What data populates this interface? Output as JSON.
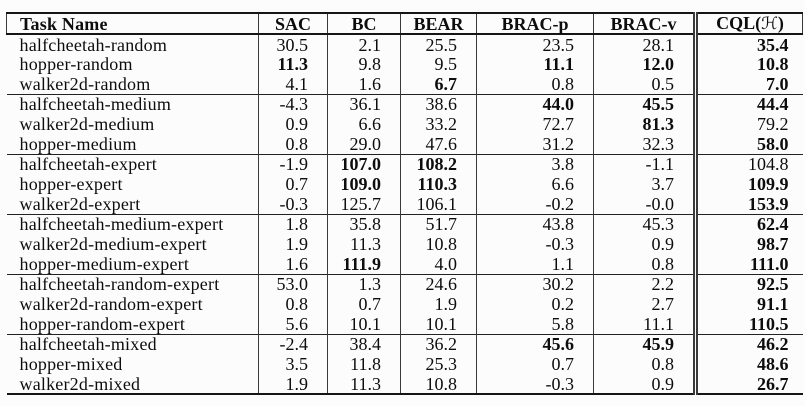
{
  "page": {
    "background_color": "#fcfcfc",
    "ink_color": "#0d0d0d"
  },
  "table": {
    "headers": [
      "Task Name",
      "SAC",
      "BC",
      "BEAR",
      "BRAC-p",
      "BRAC-v"
    ],
    "cql_header": {
      "prefix": "CQL(",
      "symbol": "ℋ",
      "suffix": ")"
    },
    "groups": [
      {
        "rows": [
          {
            "task": "halfcheetah-random",
            "values": [
              "30.5",
              "2.1",
              "25.5",
              "23.5",
              "28.1",
              "35.4"
            ],
            "bold": [
              5
            ]
          },
          {
            "task": "hopper-random",
            "values": [
              "11.3",
              "9.8",
              "9.5",
              "11.1",
              "12.0",
              "10.8"
            ],
            "bold": [
              0,
              3,
              4,
              5
            ]
          },
          {
            "task": "walker2d-random",
            "values": [
              "4.1",
              "1.6",
              "6.7",
              "0.8",
              "0.5",
              "7.0"
            ],
            "bold": [
              2,
              5
            ]
          }
        ]
      },
      {
        "rows": [
          {
            "task": "halfcheetah-medium",
            "values": [
              "-4.3",
              "36.1",
              "38.6",
              "44.0",
              "45.5",
              "44.4"
            ],
            "bold": [
              3,
              4,
              5
            ]
          },
          {
            "task": "walker2d-medium",
            "values": [
              "0.9",
              "6.6",
              "33.2",
              "72.7",
              "81.3",
              "79.2"
            ],
            "bold": [
              4
            ]
          },
          {
            "task": "hopper-medium",
            "values": [
              "0.8",
              "29.0",
              "47.6",
              "31.2",
              "32.3",
              "58.0"
            ],
            "bold": [
              5
            ]
          }
        ]
      },
      {
        "rows": [
          {
            "task": "halfcheetah-expert",
            "values": [
              "-1.9",
              "107.0",
              "108.2",
              "3.8",
              "-1.1",
              "104.8"
            ],
            "bold": [
              1,
              2
            ]
          },
          {
            "task": "hopper-expert",
            "values": [
              "0.7",
              "109.0",
              "110.3",
              "6.6",
              "3.7",
              "109.9"
            ],
            "bold": [
              1,
              2,
              5
            ]
          },
          {
            "task": "walker2d-expert",
            "values": [
              "-0.3",
              "125.7",
              "106.1",
              "-0.2",
              "-0.0",
              "153.9"
            ],
            "bold": [
              5
            ]
          }
        ]
      },
      {
        "rows": [
          {
            "task": "halfcheetah-medium-expert",
            "values": [
              "1.8",
              "35.8",
              "51.7",
              "43.8",
              "45.3",
              "62.4"
            ],
            "bold": [
              5
            ]
          },
          {
            "task": "walker2d-medium-expert",
            "values": [
              "1.9",
              "11.3",
              "10.8",
              "-0.3",
              "0.9",
              "98.7"
            ],
            "bold": [
              5
            ]
          },
          {
            "task": "hopper-medium-expert",
            "values": [
              "1.6",
              "111.9",
              "4.0",
              "1.1",
              "0.8",
              "111.0"
            ],
            "bold": [
              1,
              5
            ]
          }
        ]
      },
      {
        "rows": [
          {
            "task": "halfcheetah-random-expert",
            "values": [
              "53.0",
              "1.3",
              "24.6",
              "30.2",
              "2.2",
              "92.5"
            ],
            "bold": [
              5
            ]
          },
          {
            "task": "walker2d-random-expert",
            "values": [
              "0.8",
              "0.7",
              "1.9",
              "0.2",
              "2.7",
              "91.1"
            ],
            "bold": [
              5
            ]
          },
          {
            "task": "hopper-random-expert",
            "values": [
              "5.6",
              "10.1",
              "10.1",
              "5.8",
              "11.1",
              "110.5"
            ],
            "bold": [
              5
            ]
          }
        ]
      },
      {
        "rows": [
          {
            "task": "halfcheetah-mixed",
            "values": [
              "-2.4",
              "38.4",
              "36.2",
              "45.6",
              "45.9",
              "46.2"
            ],
            "bold": [
              3,
              4,
              5
            ]
          },
          {
            "task": "hopper-mixed",
            "values": [
              "3.5",
              "11.8",
              "25.3",
              "0.7",
              "0.8",
              "48.6"
            ],
            "bold": [
              5
            ]
          },
          {
            "task": "walker2d-mixed",
            "values": [
              "1.9",
              "11.3",
              "10.8",
              "-0.3",
              "0.9",
              "26.7"
            ],
            "bold": [
              5
            ]
          }
        ]
      }
    ]
  }
}
